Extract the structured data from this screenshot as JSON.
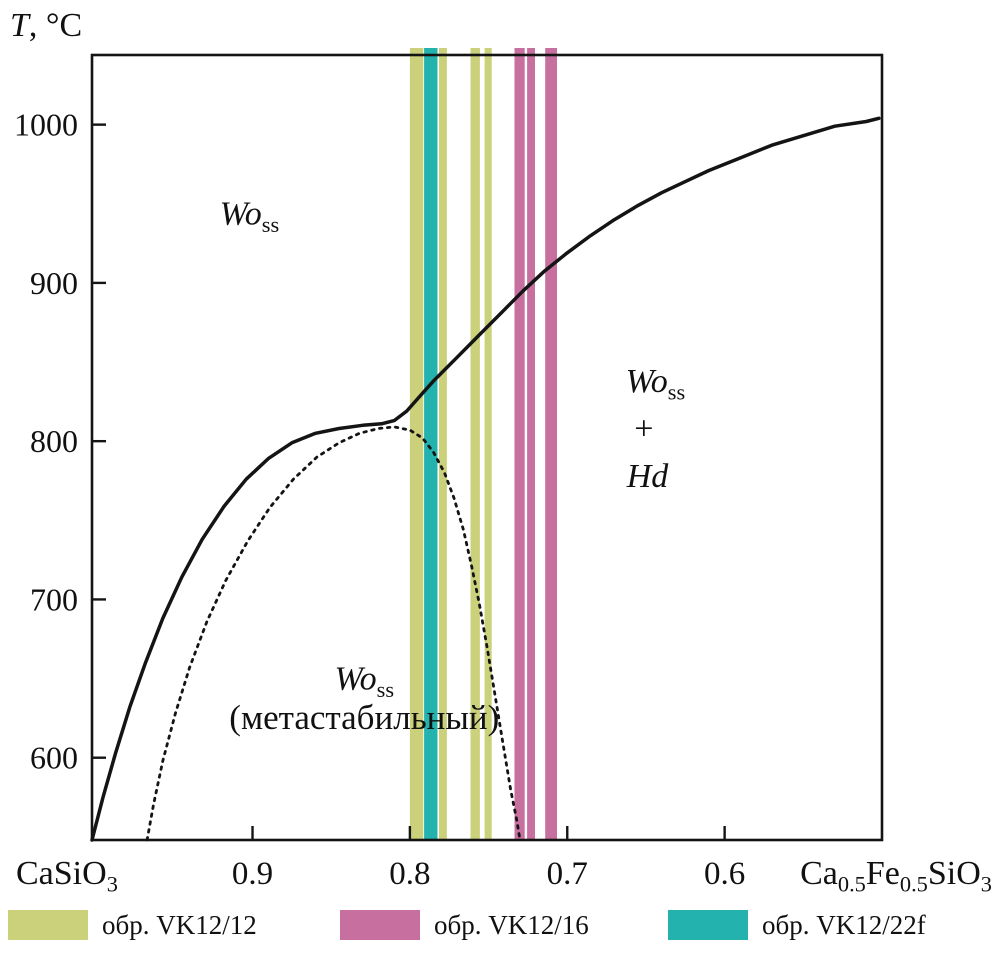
{
  "chart_data": {
    "type": "line",
    "title": "",
    "y_axis_title_segments": [
      {
        "t": "T",
        "i": true
      },
      {
        "t": ", °C"
      }
    ],
    "x_axis": {
      "left_label_segments": [
        {
          "t": "CaSiO"
        },
        {
          "t": "3",
          "sub": true
        }
      ],
      "right_label_segments": [
        {
          "t": "Ca"
        },
        {
          "t": "0.5",
          "sub": true
        },
        {
          "t": "Fe"
        },
        {
          "t": "0.5",
          "sub": true
        },
        {
          "t": "SiO"
        },
        {
          "t": "3",
          "sub": true
        }
      ],
      "tick_labels": [
        "0.9",
        "0.8",
        "0.7",
        "0.6"
      ],
      "tick_values": [
        0.9,
        0.8,
        0.7,
        0.6
      ],
      "xlim": [
        1.002,
        0.5
      ]
    },
    "y_axis": {
      "tick_labels": [
        "600",
        "700",
        "800",
        "900",
        "1000"
      ],
      "tick_values": [
        600,
        700,
        800,
        900,
        1000
      ],
      "ylim": [
        548,
        1044
      ]
    },
    "grid": false,
    "series": [
      {
        "name": "stable phase boundary (solid)",
        "style": "solid",
        "color": "#141414",
        "width": 3.5,
        "points": [
          [
            1.002,
            548
          ],
          [
            0.995,
            575
          ],
          [
            0.987,
            603
          ],
          [
            0.978,
            632
          ],
          [
            0.968,
            660
          ],
          [
            0.957,
            688
          ],
          [
            0.945,
            714
          ],
          [
            0.932,
            738
          ],
          [
            0.918,
            759
          ],
          [
            0.904,
            776
          ],
          [
            0.89,
            789
          ],
          [
            0.875,
            799
          ],
          [
            0.86,
            805
          ],
          [
            0.845,
            808
          ],
          [
            0.83,
            810
          ],
          [
            0.818,
            811
          ],
          [
            0.81,
            813
          ],
          [
            0.802,
            819
          ],
          [
            0.794,
            828
          ],
          [
            0.785,
            838
          ],
          [
            0.77,
            853
          ],
          [
            0.755,
            868
          ],
          [
            0.74,
            883
          ],
          [
            0.728,
            895
          ],
          [
            0.715,
            907
          ],
          [
            0.7,
            919
          ],
          [
            0.685,
            930
          ],
          [
            0.67,
            940
          ],
          [
            0.655,
            949
          ],
          [
            0.64,
            957
          ],
          [
            0.625,
            964
          ],
          [
            0.61,
            971
          ],
          [
            0.59,
            979
          ],
          [
            0.57,
            987
          ],
          [
            0.55,
            993
          ],
          [
            0.53,
            999
          ],
          [
            0.51,
            1002
          ],
          [
            0.502,
            1004
          ]
        ]
      },
      {
        "name": "metastable boundary (dotted)",
        "style": "dotted",
        "color": "#141414",
        "width": 2.8,
        "dash": "2.5 5.5",
        "points": [
          [
            0.967,
            548
          ],
          [
            0.963,
            570
          ],
          [
            0.957,
            598
          ],
          [
            0.949,
            628
          ],
          [
            0.94,
            657
          ],
          [
            0.929,
            686
          ],
          [
            0.917,
            712
          ],
          [
            0.903,
            737
          ],
          [
            0.889,
            758
          ],
          [
            0.874,
            776
          ],
          [
            0.859,
            790
          ],
          [
            0.845,
            799
          ],
          [
            0.832,
            805
          ],
          [
            0.82,
            808
          ],
          [
            0.81,
            809
          ],
          [
            0.8,
            807
          ],
          [
            0.792,
            802
          ],
          [
            0.785,
            793
          ],
          [
            0.778,
            780
          ],
          [
            0.772,
            764
          ],
          [
            0.766,
            744
          ],
          [
            0.761,
            722
          ],
          [
            0.756,
            698
          ],
          [
            0.751,
            670
          ],
          [
            0.746,
            640
          ],
          [
            0.741,
            610
          ],
          [
            0.736,
            580
          ],
          [
            0.732,
            560
          ],
          [
            0.73,
            548
          ]
        ]
      }
    ],
    "bands": [
      {
        "sample": "обр. VK12/12",
        "color": "#cbd17b",
        "ranges": [
          [
            0.8,
            0.7915
          ],
          [
            0.7815,
            0.7765
          ],
          [
            0.7615,
            0.7555
          ],
          [
            0.7525,
            0.748
          ]
        ]
      },
      {
        "sample": "обр. VK12/16",
        "color": "#c76f9f",
        "ranges": [
          [
            0.7335,
            0.727
          ],
          [
            0.7255,
            0.7205
          ],
          [
            0.714,
            0.7065
          ]
        ]
      },
      {
        "sample": "обр. VK12/22f",
        "color": "#23b2ae",
        "ranges": [
          [
            0.791,
            0.7825
          ]
        ]
      }
    ],
    "region_labels": [
      {
        "name": "region-label-wo-ss",
        "x": 0.902,
        "T": 937,
        "size": 34,
        "segments": [
          {
            "t": "Wo",
            "i": true
          },
          {
            "t": "ss",
            "sub": true
          }
        ]
      },
      {
        "name": "region-label-wo-hd-line1",
        "x": 0.644,
        "T": 831,
        "size": 34,
        "segments": [
          {
            "t": "Wo",
            "i": true
          },
          {
            "t": "ss",
            "sub": true
          }
        ]
      },
      {
        "name": "region-label-wo-hd-line2",
        "x": 0.6513,
        "T": 801,
        "size": 34,
        "segments": [
          {
            "t": "+"
          }
        ]
      },
      {
        "name": "region-label-wo-hd-line3",
        "x": 0.649,
        "T": 771,
        "size": 34,
        "segments": [
          {
            "t": "Hd",
            "i": true
          }
        ]
      },
      {
        "name": "region-label-metastable-line1",
        "x": 0.829,
        "T": 643,
        "size": 34,
        "segments": [
          {
            "t": "Wo",
            "i": true
          },
          {
            "t": "ss",
            "sub": true
          }
        ]
      },
      {
        "name": "region-label-metastable-line2",
        "x": 0.829,
        "T": 618,
        "size": 35,
        "segments": [
          {
            "t": "(метастабильный)"
          }
        ]
      }
    ],
    "legend": {
      "position": "bottom",
      "entries": [
        {
          "label": "обр. VK12/12",
          "color": "#cbd17b"
        },
        {
          "label": "обр. VK12/16",
          "color": "#c76f9f"
        },
        {
          "label": "обр. VK12/22f",
          "color": "#23b2ae"
        }
      ]
    }
  }
}
